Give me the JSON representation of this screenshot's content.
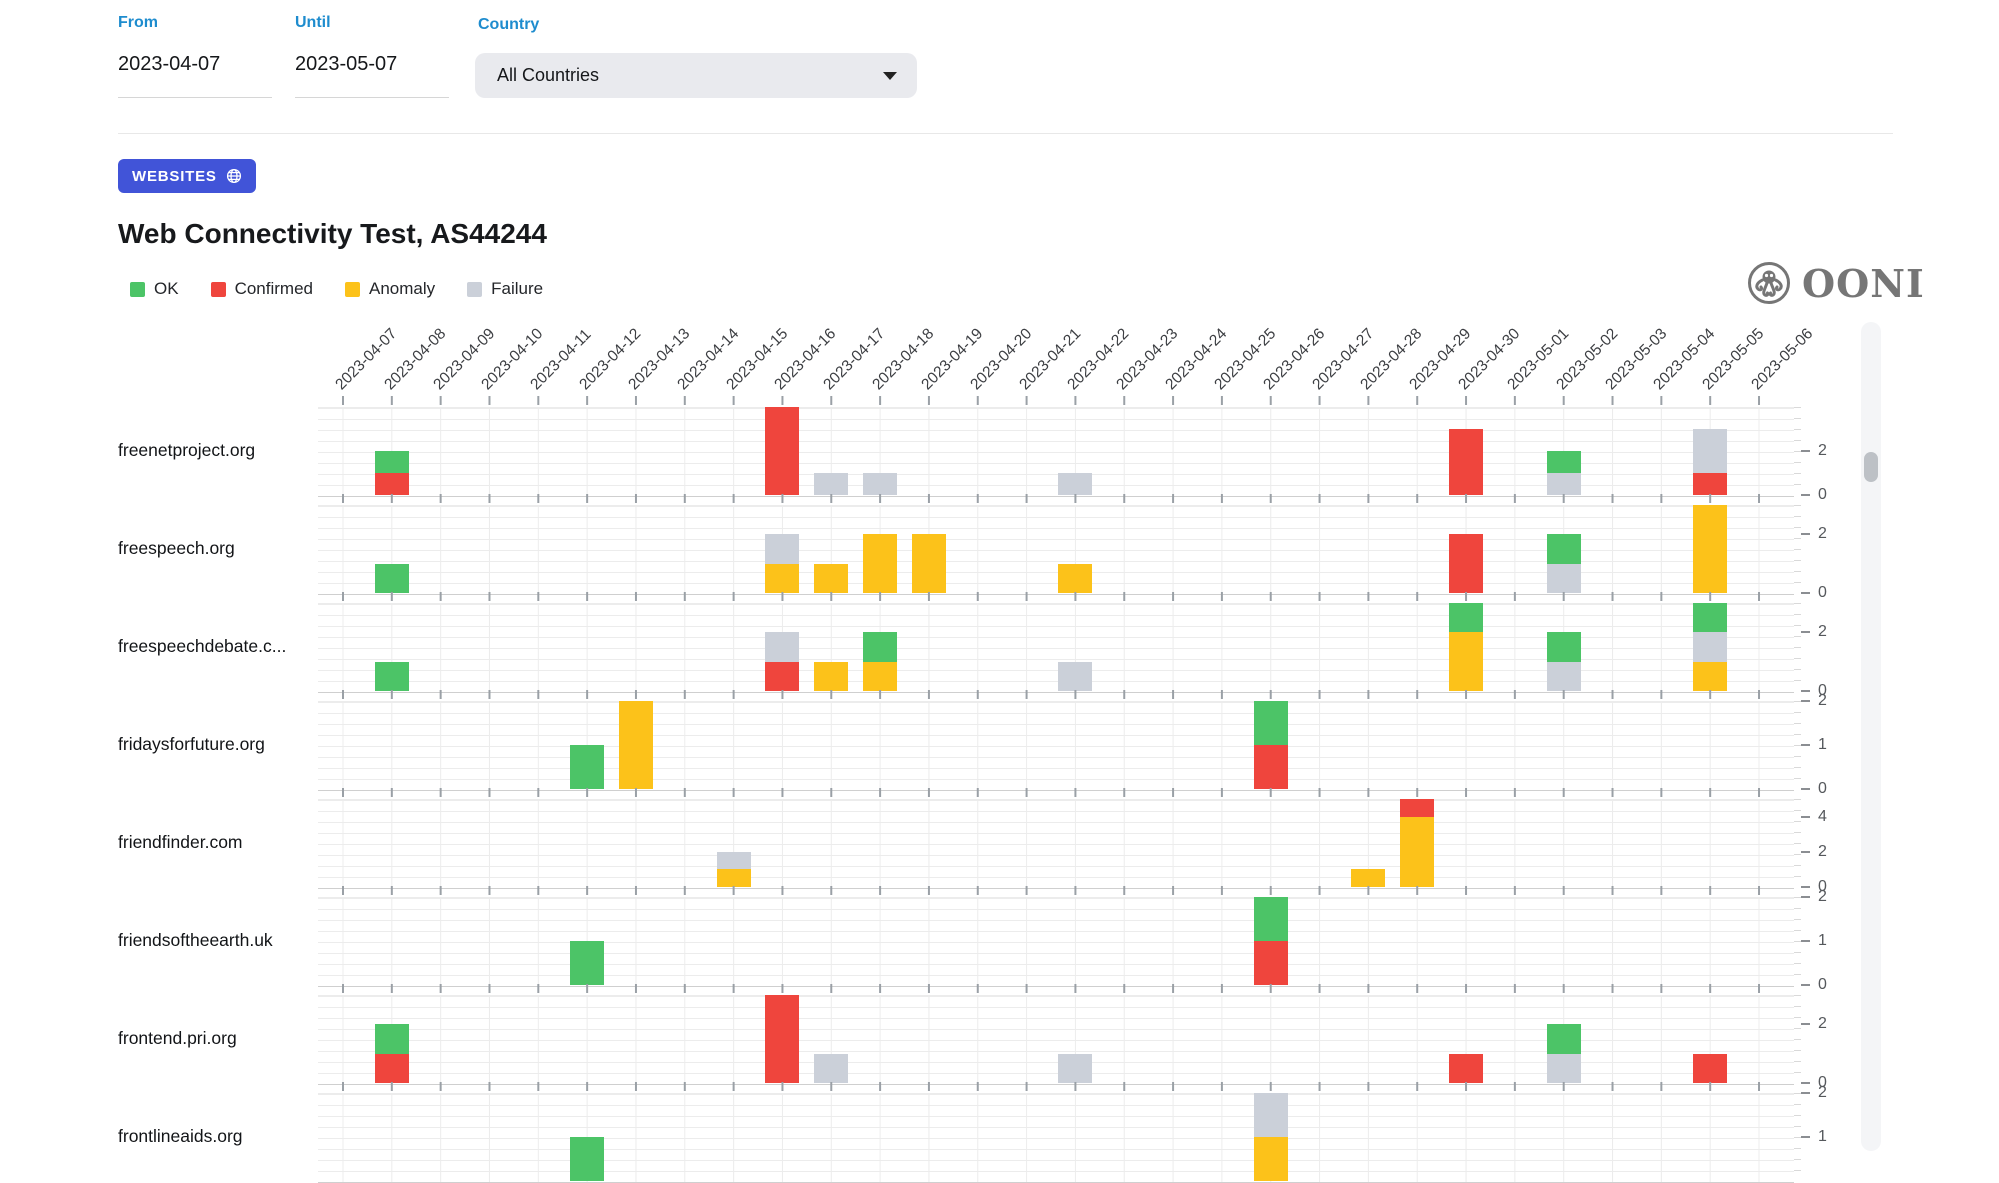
{
  "filters": {
    "from_label": "From",
    "from_value": "2023-04-07",
    "until_label": "Until",
    "until_value": "2023-05-07",
    "country_label": "Country",
    "country_value": "All Countries"
  },
  "badge": {
    "label": "WEBSITES"
  },
  "title": "Web Connectivity Test, AS44244",
  "logo": {
    "text": "OONI"
  },
  "legend": [
    {
      "status": "ok",
      "label": "OK"
    },
    {
      "status": "confirmed",
      "label": "Confirmed"
    },
    {
      "status": "anomaly",
      "label": "Anomaly"
    },
    {
      "status": "failure",
      "label": "Failure"
    }
  ],
  "colors": {
    "ok": "#4cc467",
    "confirmed": "#ef453d",
    "anomaly": "#fcc21a",
    "failure": "#cbd0d9",
    "accent_blue": "#1e8cce",
    "badge_blue": "#4154d8"
  },
  "chart_data": {
    "type": "bar",
    "stacked": true,
    "x_dates": [
      "2023-04-07",
      "2023-04-08",
      "2023-04-09",
      "2023-04-10",
      "2023-04-11",
      "2023-04-12",
      "2023-04-13",
      "2023-04-14",
      "2023-04-15",
      "2023-04-16",
      "2023-04-17",
      "2023-04-18",
      "2023-04-19",
      "2023-04-20",
      "2023-04-21",
      "2023-04-22",
      "2023-04-23",
      "2023-04-24",
      "2023-04-25",
      "2023-04-26",
      "2023-04-27",
      "2023-04-28",
      "2023-04-29",
      "2023-04-30",
      "2023-05-01",
      "2023-05-02",
      "2023-05-03",
      "2023-05-04",
      "2023-05-05",
      "2023-05-06"
    ],
    "legend_entries": [
      "OK",
      "Confirmed",
      "Anomaly",
      "Failure"
    ],
    "rows": [
      {
        "label": "freenetproject.org",
        "axis_max": 4,
        "axis_ticks": [
          2,
          0
        ],
        "bars": [
          {
            "date": "2023-04-08",
            "segments": [
              [
                "confirmed",
                1
              ],
              [
                "ok",
                1
              ]
            ]
          },
          {
            "date": "2023-04-16",
            "segments": [
              [
                "confirmed",
                4
              ]
            ]
          },
          {
            "date": "2023-04-17",
            "segments": [
              [
                "failure",
                1
              ]
            ]
          },
          {
            "date": "2023-04-18",
            "segments": [
              [
                "failure",
                1
              ]
            ]
          },
          {
            "date": "2023-04-22",
            "segments": [
              [
                "failure",
                1
              ]
            ]
          },
          {
            "date": "2023-04-30",
            "segments": [
              [
                "confirmed",
                3
              ]
            ]
          },
          {
            "date": "2023-05-02",
            "segments": [
              [
                "failure",
                1
              ],
              [
                "ok",
                1
              ]
            ]
          },
          {
            "date": "2023-05-05",
            "segments": [
              [
                "confirmed",
                1
              ],
              [
                "failure",
                2
              ]
            ]
          }
        ]
      },
      {
        "label": "freespeech.org",
        "axis_max": 3,
        "axis_ticks": [
          2,
          0
        ],
        "bars": [
          {
            "date": "2023-04-08",
            "segments": [
              [
                "ok",
                1
              ]
            ]
          },
          {
            "date": "2023-04-16",
            "segments": [
              [
                "anomaly",
                1
              ],
              [
                "failure",
                1
              ]
            ]
          },
          {
            "date": "2023-04-17",
            "segments": [
              [
                "anomaly",
                1
              ]
            ]
          },
          {
            "date": "2023-04-18",
            "segments": [
              [
                "anomaly",
                2
              ]
            ]
          },
          {
            "date": "2023-04-19",
            "segments": [
              [
                "anomaly",
                2
              ]
            ]
          },
          {
            "date": "2023-04-22",
            "segments": [
              [
                "anomaly",
                1
              ]
            ]
          },
          {
            "date": "2023-04-30",
            "segments": [
              [
                "confirmed",
                2
              ]
            ]
          },
          {
            "date": "2023-05-02",
            "segments": [
              [
                "failure",
                1
              ],
              [
                "ok",
                1
              ]
            ]
          },
          {
            "date": "2023-05-05",
            "segments": [
              [
                "anomaly",
                3
              ]
            ]
          }
        ]
      },
      {
        "label": "freespeechdebate.c...",
        "axis_max": 3,
        "axis_ticks": [
          2,
          0
        ],
        "bars": [
          {
            "date": "2023-04-08",
            "segments": [
              [
                "ok",
                1
              ]
            ]
          },
          {
            "date": "2023-04-16",
            "segments": [
              [
                "confirmed",
                1
              ],
              [
                "failure",
                1
              ]
            ]
          },
          {
            "date": "2023-04-17",
            "segments": [
              [
                "anomaly",
                1
              ]
            ]
          },
          {
            "date": "2023-04-18",
            "segments": [
              [
                "anomaly",
                1
              ],
              [
                "ok",
                1
              ]
            ]
          },
          {
            "date": "2023-04-22",
            "segments": [
              [
                "failure",
                1
              ]
            ]
          },
          {
            "date": "2023-04-30",
            "segments": [
              [
                "anomaly",
                2
              ],
              [
                "ok",
                1
              ]
            ]
          },
          {
            "date": "2023-05-02",
            "segments": [
              [
                "failure",
                1
              ],
              [
                "ok",
                1
              ]
            ]
          },
          {
            "date": "2023-05-05",
            "segments": [
              [
                "anomaly",
                1
              ],
              [
                "failure",
                1
              ],
              [
                "ok",
                1
              ]
            ]
          }
        ]
      },
      {
        "label": "fridaysforfuture.org",
        "axis_max": 2,
        "axis_ticks": [
          2,
          1,
          0
        ],
        "bars": [
          {
            "date": "2023-04-12",
            "segments": [
              [
                "ok",
                1
              ]
            ]
          },
          {
            "date": "2023-04-13",
            "segments": [
              [
                "anomaly",
                2
              ]
            ]
          },
          {
            "date": "2023-04-26",
            "segments": [
              [
                "confirmed",
                1
              ],
              [
                "ok",
                1
              ]
            ]
          }
        ]
      },
      {
        "label": "friendfinder.com",
        "axis_max": 5,
        "axis_ticks": [
          4,
          2,
          0
        ],
        "bars": [
          {
            "date": "2023-04-15",
            "segments": [
              [
                "anomaly",
                1
              ],
              [
                "failure",
                1
              ]
            ]
          },
          {
            "date": "2023-04-28",
            "segments": [
              [
                "anomaly",
                1
              ]
            ]
          },
          {
            "date": "2023-04-29",
            "segments": [
              [
                "anomaly",
                4
              ],
              [
                "confirmed",
                1
              ]
            ]
          }
        ]
      },
      {
        "label": "friendsoftheearth.uk",
        "axis_max": 2,
        "axis_ticks": [
          2,
          1,
          0
        ],
        "bars": [
          {
            "date": "2023-04-12",
            "segments": [
              [
                "ok",
                1
              ]
            ]
          },
          {
            "date": "2023-04-26",
            "segments": [
              [
                "confirmed",
                1
              ],
              [
                "ok",
                1
              ]
            ]
          }
        ]
      },
      {
        "label": "frontend.pri.org",
        "axis_max": 3,
        "axis_ticks": [
          2,
          0
        ],
        "bars": [
          {
            "date": "2023-04-08",
            "segments": [
              [
                "confirmed",
                1
              ],
              [
                "ok",
                1
              ]
            ]
          },
          {
            "date": "2023-04-16",
            "segments": [
              [
                "confirmed",
                3
              ]
            ]
          },
          {
            "date": "2023-04-17",
            "segments": [
              [
                "failure",
                1
              ]
            ]
          },
          {
            "date": "2023-04-22",
            "segments": [
              [
                "failure",
                1
              ]
            ]
          },
          {
            "date": "2023-04-30",
            "segments": [
              [
                "confirmed",
                1
              ]
            ]
          },
          {
            "date": "2023-05-02",
            "segments": [
              [
                "failure",
                1
              ],
              [
                "ok",
                1
              ]
            ]
          },
          {
            "date": "2023-05-05",
            "segments": [
              [
                "confirmed",
                1
              ]
            ]
          }
        ]
      },
      {
        "label": "frontlineaids.org",
        "axis_max": 2,
        "axis_ticks": [
          2,
          1
        ],
        "bars": [
          {
            "date": "2023-04-12",
            "segments": [
              [
                "ok",
                1
              ]
            ]
          },
          {
            "date": "2023-04-26",
            "segments": [
              [
                "anomaly",
                1
              ],
              [
                "failure",
                1
              ]
            ]
          }
        ]
      }
    ]
  }
}
